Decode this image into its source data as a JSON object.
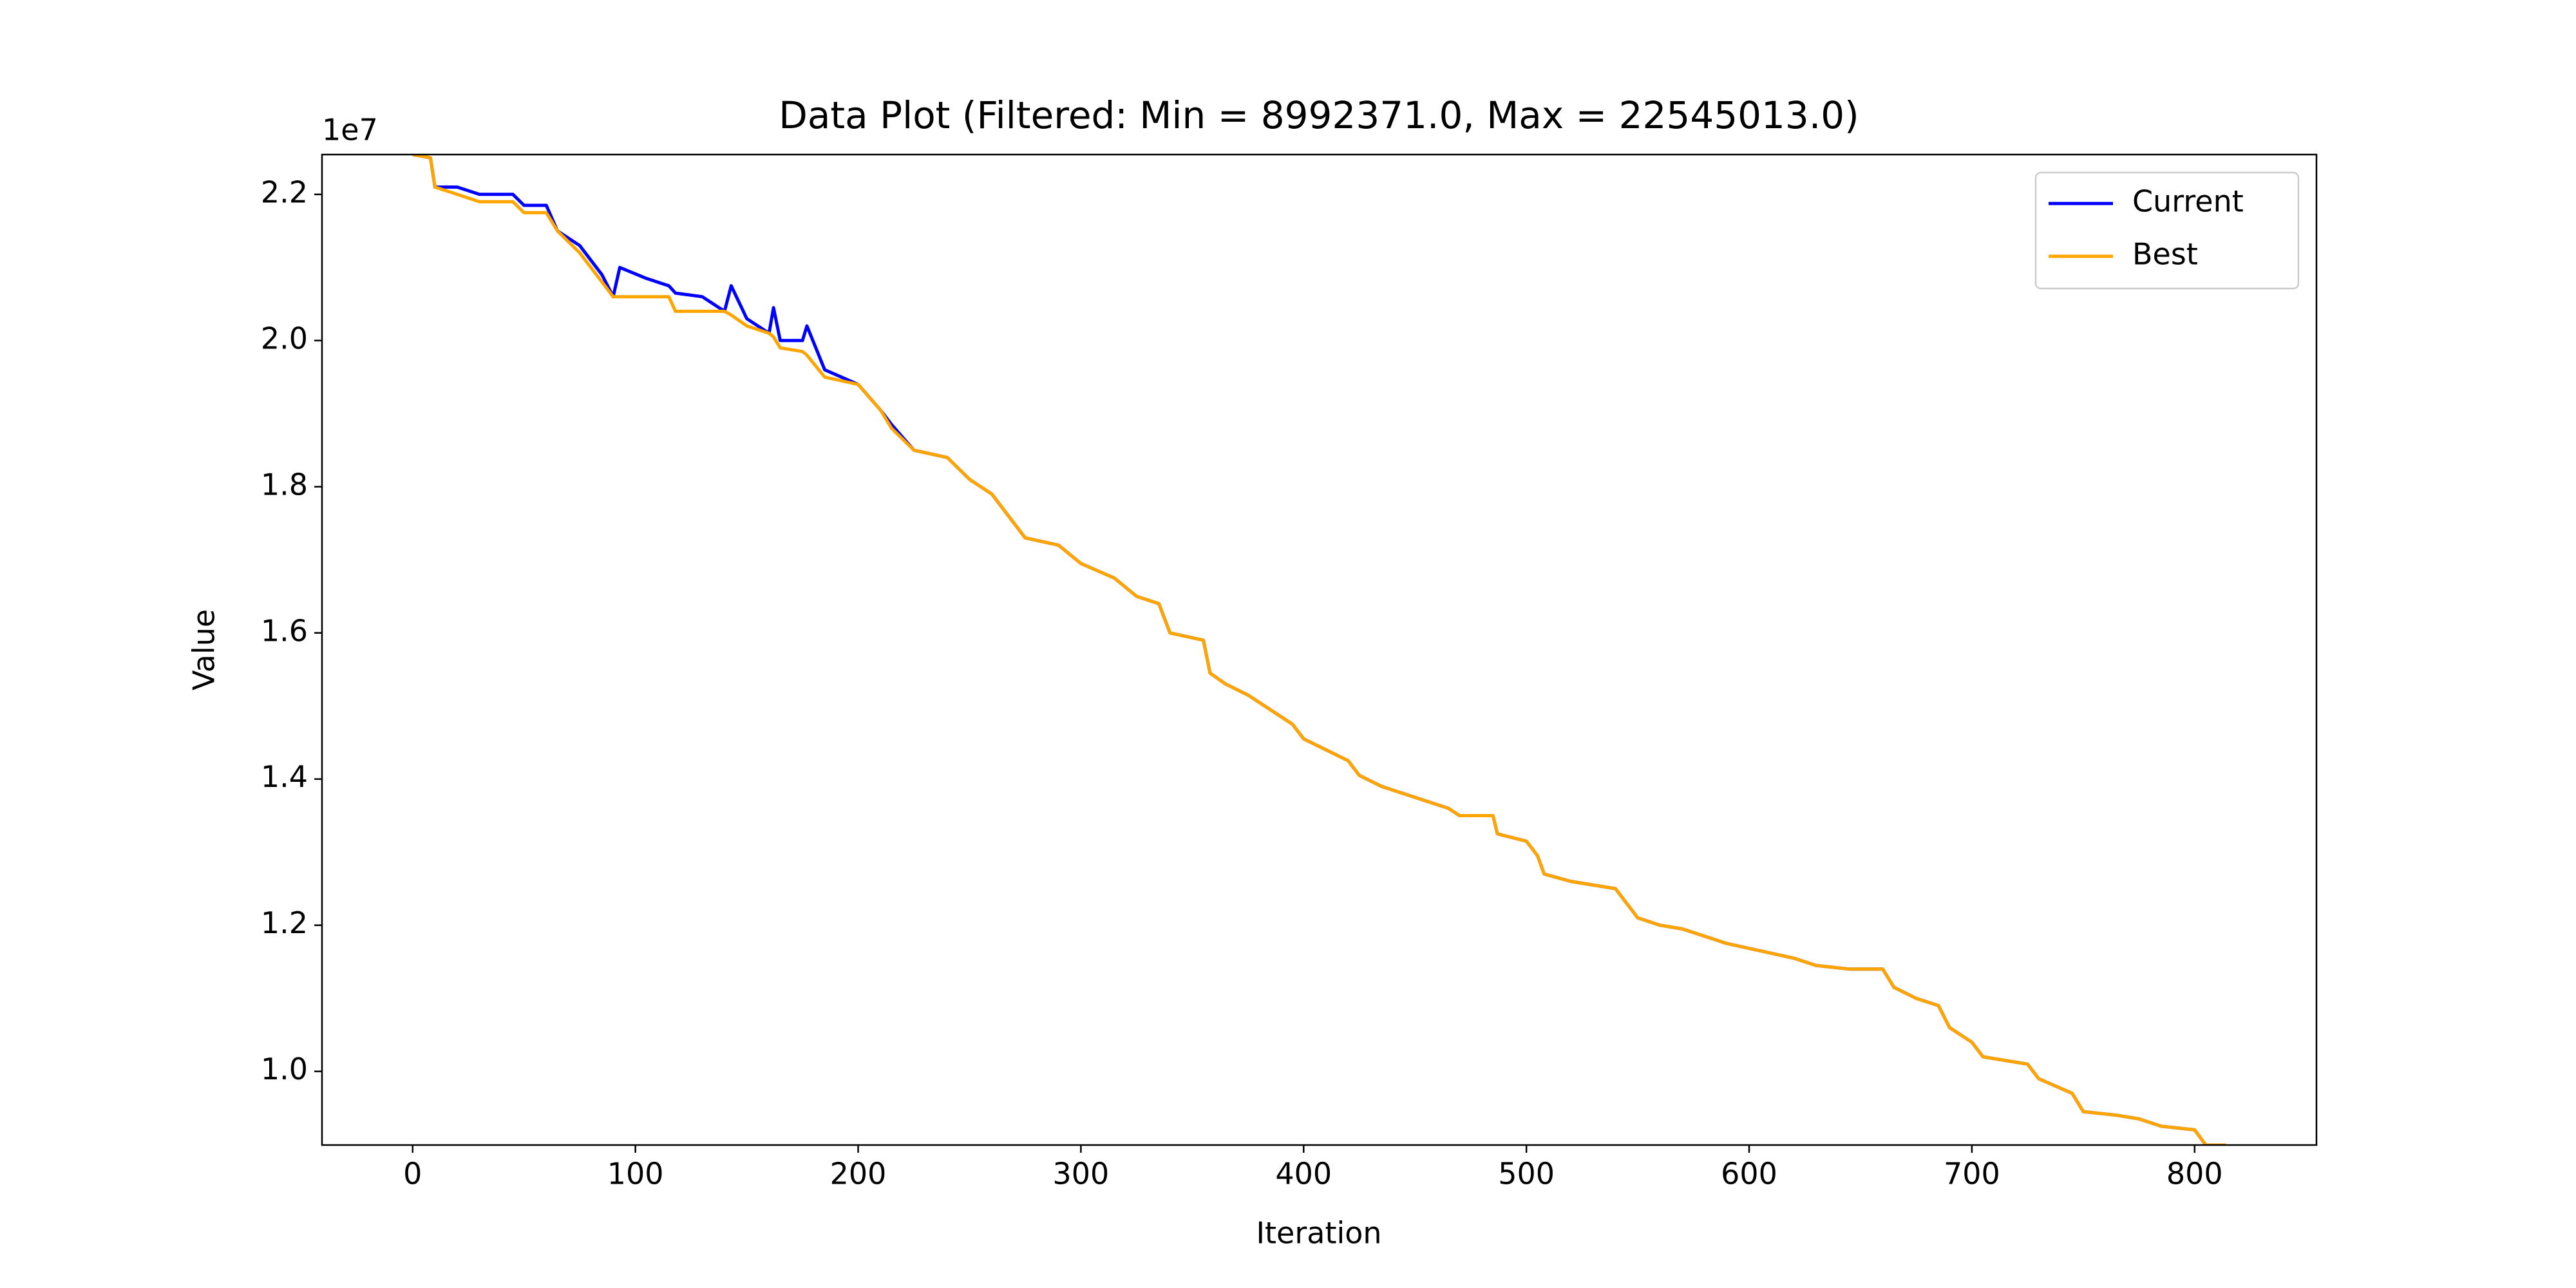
{
  "chart_data": {
    "type": "line",
    "title": "Data Plot (Filtered: Min = 8992371.0, Max = 22545013.0)",
    "x_label": "Iteration",
    "y_label": "Value",
    "y_offset_label": "1e7",
    "x": [
      0,
      8,
      10,
      20,
      30,
      45,
      50,
      60,
      65,
      75,
      85,
      90,
      93,
      105,
      115,
      118,
      130,
      140,
      143,
      150,
      160,
      162,
      165,
      175,
      177,
      185,
      200,
      210,
      215,
      225,
      240,
      250,
      260,
      270,
      275,
      290,
      300,
      315,
      325,
      335,
      340,
      355,
      358,
      365,
      375,
      385,
      395,
      400,
      410,
      420,
      425,
      435,
      450,
      465,
      470,
      485,
      487,
      500,
      505,
      508,
      520,
      540,
      545,
      550,
      560,
      570,
      580,
      590,
      605,
      620,
      630,
      645,
      660,
      665,
      675,
      685,
      690,
      700,
      705,
      725,
      730,
      745,
      750,
      765,
      775,
      785,
      800,
      805,
      814
    ],
    "series": [
      {
        "name": "Current",
        "color": "#0000ff",
        "values": [
          22545013,
          22500000,
          22100000,
          22100000,
          22000000,
          22000000,
          21850000,
          21850000,
          21500000,
          21300000,
          20900000,
          20600000,
          21000000,
          20850000,
          20750000,
          20650000,
          20600000,
          20400000,
          20750000,
          20300000,
          20100000,
          20450000,
          20000000,
          20000000,
          20200000,
          19600000,
          19400000,
          19050000,
          18850000,
          18500000,
          18400000,
          18100000,
          17900000,
          17500000,
          17300000,
          17200000,
          16950000,
          16750000,
          16500000,
          16400000,
          16000000,
          15900000,
          15450000,
          15300000,
          15150000,
          14950000,
          14750000,
          14550000,
          14400000,
          14250000,
          14050000,
          13900000,
          13750000,
          13600000,
          13500000,
          13500000,
          13250000,
          13150000,
          12950000,
          12700000,
          12600000,
          12500000,
          12300000,
          12100000,
          12000000,
          11950000,
          11850000,
          11750000,
          11650000,
          11550000,
          11450000,
          11400000,
          11400000,
          11150000,
          11000000,
          10900000,
          10600000,
          10400000,
          10200000,
          10100000,
          9900000,
          9700000,
          9450000,
          9400000,
          9350000,
          9250000,
          9200000,
          8992371,
          8992371
        ]
      },
      {
        "name": "Best",
        "color": "#ffa500",
        "values": [
          22545013,
          22500000,
          22100000,
          22000000,
          21900000,
          21900000,
          21750000,
          21750000,
          21500000,
          21200000,
          20800000,
          20600000,
          20600000,
          20600000,
          20600000,
          20400000,
          20400000,
          20400000,
          20350000,
          20200000,
          20100000,
          20050000,
          19900000,
          19850000,
          19800000,
          19500000,
          19400000,
          19050000,
          18800000,
          18500000,
          18400000,
          18100000,
          17900000,
          17500000,
          17300000,
          17200000,
          16950000,
          16750000,
          16500000,
          16400000,
          16000000,
          15900000,
          15450000,
          15300000,
          15150000,
          14950000,
          14750000,
          14550000,
          14400000,
          14250000,
          14050000,
          13900000,
          13750000,
          13600000,
          13500000,
          13500000,
          13250000,
          13150000,
          12950000,
          12700000,
          12600000,
          12500000,
          12300000,
          12100000,
          12000000,
          11950000,
          11850000,
          11750000,
          11650000,
          11550000,
          11450000,
          11400000,
          11400000,
          11150000,
          11000000,
          10900000,
          10600000,
          10400000,
          10200000,
          10100000,
          9900000,
          9700000,
          9450000,
          9400000,
          9350000,
          9250000,
          9200000,
          8992371,
          8992371
        ]
      }
    ],
    "xlim": [
      -40.7,
      854.7
    ],
    "ylim": [
      8992371,
      22545013
    ],
    "xticks": [
      0,
      100,
      200,
      300,
      400,
      500,
      600,
      700,
      800
    ],
    "yticks": [
      {
        "value": 10000000,
        "label": "1.0"
      },
      {
        "value": 12000000,
        "label": "1.2"
      },
      {
        "value": 14000000,
        "label": "1.4"
      },
      {
        "value": 16000000,
        "label": "1.6"
      },
      {
        "value": 18000000,
        "label": "1.8"
      },
      {
        "value": 20000000,
        "label": "2.0"
      },
      {
        "value": 22000000,
        "label": "2.2"
      }
    ],
    "legend": "upper right",
    "grid": false
  }
}
